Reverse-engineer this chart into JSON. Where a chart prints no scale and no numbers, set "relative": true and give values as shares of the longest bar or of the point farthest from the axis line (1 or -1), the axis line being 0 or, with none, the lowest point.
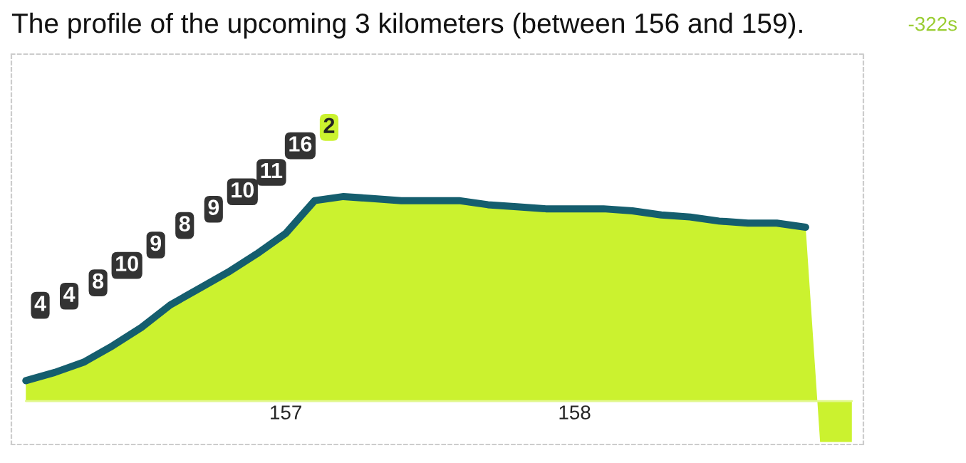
{
  "chart_data": {
    "type": "area",
    "title": "The profile of the upcoming 3 kilometers (between 156 and 159).",
    "relative": true,
    "x": [
      156.1,
      156.2,
      156.3,
      156.4,
      156.5,
      156.6,
      156.7,
      156.8,
      156.9,
      157.0,
      157.1,
      157.2,
      157.3,
      157.4,
      157.5,
      157.6,
      157.7,
      157.8,
      157.9,
      158.0,
      158.1,
      158.2,
      158.3,
      158.4,
      158.5,
      158.6,
      158.7,
      158.8,
      158.85,
      158.96
    ],
    "series": [
      {
        "color": "#cbf22f",
        "values": [
          0.1,
          0.14,
          0.19,
          0.27,
          0.36,
          0.47,
          0.55,
          0.63,
          0.72,
          0.82,
          0.98,
          1.0,
          0.99,
          0.98,
          0.98,
          0.98,
          0.96,
          0.95,
          0.94,
          0.94,
          0.94,
          0.93,
          0.91,
          0.9,
          0.88,
          0.87,
          0.87,
          0.85,
          -0.2,
          -0.2
        ]
      },
      {
        "type": "line",
        "color": "#155e6e",
        "x": [
          156.1,
          156.2,
          156.3,
          156.4,
          156.5,
          156.6,
          156.7,
          156.8,
          156.9,
          157.0,
          157.1,
          157.2,
          157.3,
          157.4,
          157.5,
          157.6,
          157.7,
          157.8,
          157.9,
          158.0,
          158.1,
          158.2,
          158.3,
          158.4,
          158.5,
          158.6,
          158.7,
          158.8
        ],
        "values": [
          0.1,
          0.14,
          0.19,
          0.27,
          0.36,
          0.47,
          0.55,
          0.63,
          0.72,
          0.82,
          0.98,
          1.0,
          0.99,
          0.98,
          0.98,
          0.98,
          0.96,
          0.95,
          0.94,
          0.94,
          0.94,
          0.93,
          0.91,
          0.9,
          0.88,
          0.87,
          0.87,
          0.85
        ]
      }
    ],
    "xlim": [
      156.05,
      159.0
    ],
    "xticks": [
      157,
      158
    ],
    "grid": false,
    "legend": false,
    "annotations": [
      "4",
      "4",
      "8",
      "10",
      "9",
      "8",
      "9",
      "10",
      "11",
      "16",
      "2",
      "-322s"
    ]
  }
}
